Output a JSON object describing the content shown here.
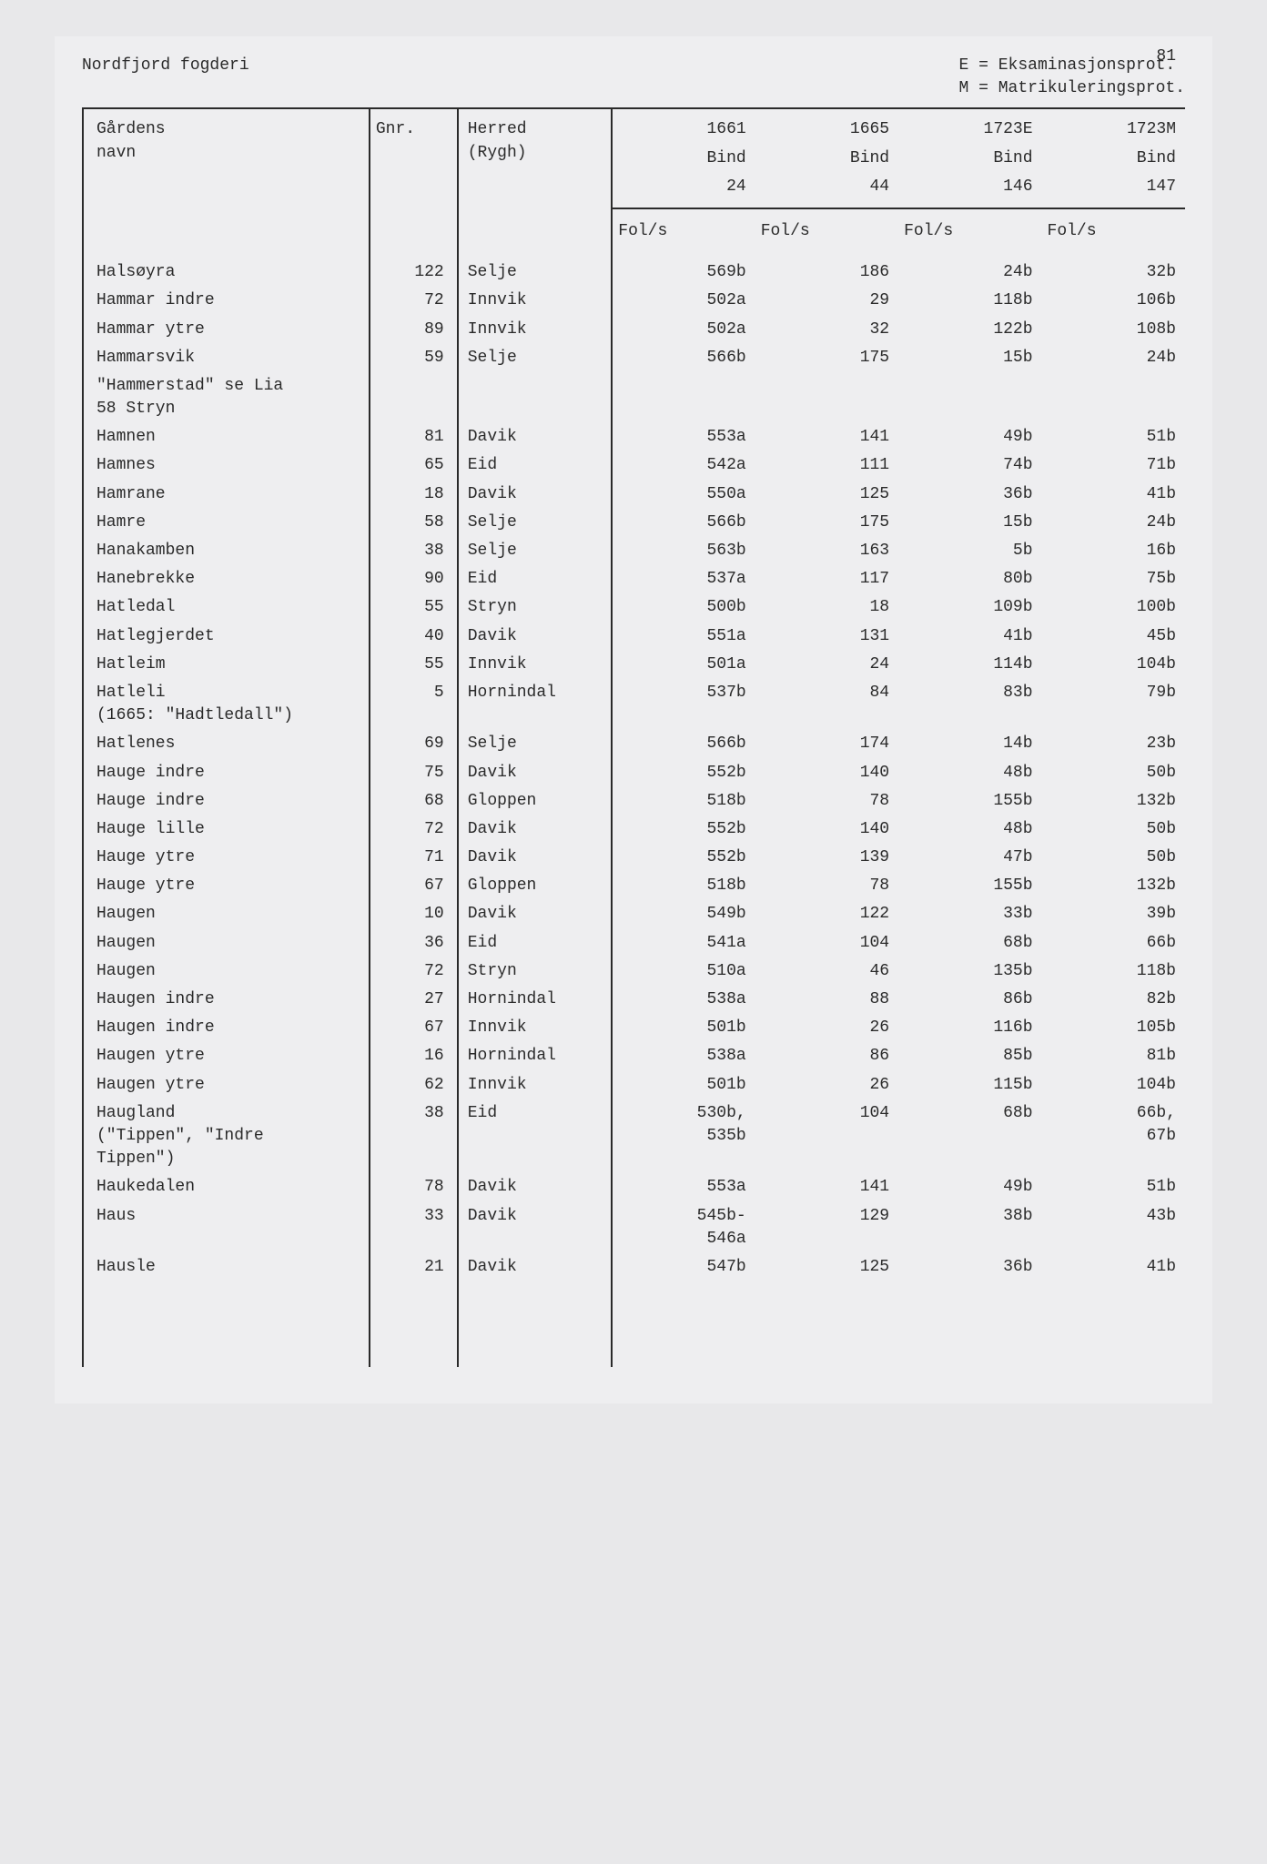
{
  "page_number": "81",
  "header": {
    "left": "Nordfjord fogderi",
    "right_line1": "E = Eksaminasjonsprot.",
    "right_line2": "M = Matrikuleringsprot."
  },
  "columns": {
    "name": "Gårdens\nnavn",
    "gnr": "Gnr.",
    "herred": "Herred\n(Rygh)",
    "c1661_l1": "1661",
    "c1661_l2": "Bind",
    "c1661_l3": "24",
    "c1665_l1": "1665",
    "c1665_l2": "Bind",
    "c1665_l3": "44",
    "c1723e_l1": "1723E",
    "c1723e_l2": "Bind",
    "c1723e_l3": "146",
    "c1723m_l1": "1723M",
    "c1723m_l2": "Bind",
    "c1723m_l3": "147"
  },
  "fols_label": "Fol/s",
  "rows": [
    {
      "name": "Halsøyra",
      "gnr": "122",
      "herred": "Selje",
      "c1": "569b",
      "c2": "186",
      "c3": "24b",
      "c4": "32b"
    },
    {
      "name": "Hammar indre",
      "gnr": "72",
      "herred": "Innvik",
      "c1": "502a",
      "c2": "29",
      "c3": "118b",
      "c4": "106b"
    },
    {
      "name": "Hammar ytre",
      "gnr": "89",
      "herred": "Innvik",
      "c1": "502a",
      "c2": "32",
      "c3": "122b",
      "c4": "108b"
    },
    {
      "name": "Hammarsvik",
      "gnr": "59",
      "herred": "Selje",
      "c1": "566b",
      "c2": "175",
      "c3": "15b",
      "c4": "24b"
    },
    {
      "name": "\"Hammerstad\" se Lia\n58 Stryn",
      "gnr": "",
      "herred": "",
      "c1": "",
      "c2": "",
      "c3": "",
      "c4": ""
    },
    {
      "name": "Hamnen",
      "gnr": "81",
      "herred": "Davik",
      "c1": "553a",
      "c2": "141",
      "c3": "49b",
      "c4": "51b"
    },
    {
      "name": "Hamnes",
      "gnr": "65",
      "herred": "Eid",
      "c1": "542a",
      "c2": "111",
      "c3": "74b",
      "c4": "71b"
    },
    {
      "name": "Hamrane",
      "gnr": "18",
      "herred": "Davik",
      "c1": "550a",
      "c2": "125",
      "c3": "36b",
      "c4": "41b"
    },
    {
      "name": "Hamre",
      "gnr": "58",
      "herred": "Selje",
      "c1": "566b",
      "c2": "175",
      "c3": "15b",
      "c4": "24b"
    },
    {
      "name": "Hanakamben",
      "gnr": "38",
      "herred": "Selje",
      "c1": "563b",
      "c2": "163",
      "c3": "5b",
      "c4": "16b"
    },
    {
      "name": "Hanebrekke",
      "gnr": "90",
      "herred": "Eid",
      "c1": "537a",
      "c2": "117",
      "c3": "80b",
      "c4": "75b"
    },
    {
      "name": "Hatledal",
      "gnr": "55",
      "herred": "Stryn",
      "c1": "500b",
      "c2": "18",
      "c3": "109b",
      "c4": "100b"
    },
    {
      "name": "Hatlegjerdet",
      "gnr": "40",
      "herred": "Davik",
      "c1": "551a",
      "c2": "131",
      "c3": "41b",
      "c4": "45b"
    },
    {
      "name": "Hatleim",
      "gnr": "55",
      "herred": "Innvik",
      "c1": "501a",
      "c2": "24",
      "c3": "114b",
      "c4": "104b"
    },
    {
      "name": "Hatleli\n(1665: \"Hadtledall\")",
      "gnr": "5",
      "herred": "Hornindal",
      "c1": "537b",
      "c2": "84",
      "c3": "83b",
      "c4": "79b"
    },
    {
      "name": "Hatlenes",
      "gnr": "69",
      "herred": "Selje",
      "c1": "566b",
      "c2": "174",
      "c3": "14b",
      "c4": "23b"
    },
    {
      "name": "Hauge indre",
      "gnr": "75",
      "herred": "Davik",
      "c1": "552b",
      "c2": "140",
      "c3": "48b",
      "c4": "50b"
    },
    {
      "name": "Hauge indre",
      "gnr": "68",
      "herred": "Gloppen",
      "c1": "518b",
      "c2": "78",
      "c3": "155b",
      "c4": "132b"
    },
    {
      "name": "Hauge lille",
      "gnr": "72",
      "herred": "Davik",
      "c1": "552b",
      "c2": "140",
      "c3": "48b",
      "c4": "50b"
    },
    {
      "name": "Hauge ytre",
      "gnr": "71",
      "herred": "Davik",
      "c1": "552b",
      "c2": "139",
      "c3": "47b",
      "c4": "50b"
    },
    {
      "name": "Hauge ytre",
      "gnr": "67",
      "herred": "Gloppen",
      "c1": "518b",
      "c2": "78",
      "c3": "155b",
      "c4": "132b"
    },
    {
      "name": "Haugen",
      "gnr": "10",
      "herred": "Davik",
      "c1": "549b",
      "c2": "122",
      "c3": "33b",
      "c4": "39b"
    },
    {
      "name": "Haugen",
      "gnr": "36",
      "herred": "Eid",
      "c1": "541a",
      "c2": "104",
      "c3": "68b",
      "c4": "66b"
    },
    {
      "name": "Haugen",
      "gnr": "72",
      "herred": "Stryn",
      "c1": "510a",
      "c2": "46",
      "c3": "135b",
      "c4": "118b"
    },
    {
      "name": "Haugen indre",
      "gnr": "27",
      "herred": "Hornindal",
      "c1": "538a",
      "c2": "88",
      "c3": "86b",
      "c4": "82b"
    },
    {
      "name": "Haugen indre",
      "gnr": "67",
      "herred": "Innvik",
      "c1": "501b",
      "c2": "26",
      "c3": "116b",
      "c4": "105b"
    },
    {
      "name": "Haugen ytre",
      "gnr": "16",
      "herred": "Hornindal",
      "c1": "538a",
      "c2": "86",
      "c3": "85b",
      "c4": "81b"
    },
    {
      "name": "Haugen ytre",
      "gnr": "62",
      "herred": "Innvik",
      "c1": "501b",
      "c2": "26",
      "c3": "115b",
      "c4": "104b"
    },
    {
      "name": "Haugland\n(\"Tippen\", \"Indre\nTippen\")",
      "gnr": "38",
      "herred": "Eid",
      "c1": "530b,\n535b",
      "c2": "104",
      "c3": "68b",
      "c4": "66b,\n67b"
    },
    {
      "name": "Haukedalen",
      "gnr": "78",
      "herred": "Davik",
      "c1": "553a",
      "c2": "141",
      "c3": "49b",
      "c4": "51b"
    },
    {
      "name": "Haus",
      "gnr": "33",
      "herred": "Davik",
      "c1": "545b-\n546a",
      "c2": "129",
      "c3": "38b",
      "c4": "43b"
    },
    {
      "name": "Hausle",
      "gnr": "21",
      "herred": "Davik",
      "c1": "547b",
      "c2": "125",
      "c3": "36b",
      "c4": "41b"
    }
  ]
}
